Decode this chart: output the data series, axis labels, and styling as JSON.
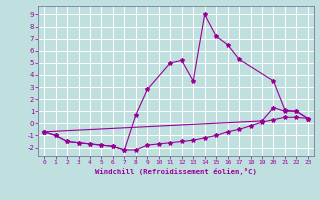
{
  "xlabel": "Windchill (Refroidissement éolien,°C)",
  "bg_color": "#c0e0e0",
  "line_color": "#990099",
  "xlim": [
    -0.5,
    23.5
  ],
  "ylim": [
    -2.7,
    9.7
  ],
  "xticks": [
    0,
    1,
    2,
    3,
    4,
    5,
    6,
    7,
    8,
    9,
    10,
    11,
    12,
    13,
    14,
    15,
    16,
    17,
    18,
    19,
    20,
    21,
    22,
    23
  ],
  "yticks": [
    -2,
    -1,
    0,
    1,
    2,
    3,
    4,
    5,
    6,
    7,
    8,
    9
  ],
  "series": [
    {
      "x": [
        0,
        1,
        2,
        3,
        4,
        5,
        6,
        7,
        8,
        9,
        10,
        11,
        12,
        13,
        14,
        15,
        16,
        17,
        18,
        19,
        20,
        21,
        22,
        23
      ],
      "y": [
        -0.7,
        -1.0,
        -1.5,
        -1.6,
        -1.7,
        -1.8,
        -1.9,
        -2.2,
        -2.2,
        -1.8,
        -1.7,
        -1.6,
        -1.5,
        -1.4,
        -1.2,
        -1.0,
        -0.7,
        -0.5,
        -0.2,
        0.1,
        0.3,
        0.5,
        0.5,
        0.4
      ]
    },
    {
      "x": [
        0,
        1,
        2,
        3,
        4,
        5,
        6,
        7,
        8,
        9,
        11,
        12,
        13,
        14,
        15,
        16,
        17,
        20,
        21,
        22,
        23
      ],
      "y": [
        -0.7,
        -1.0,
        -1.5,
        -1.6,
        -1.7,
        -1.8,
        -1.9,
        -2.2,
        0.7,
        2.8,
        5.0,
        5.2,
        3.5,
        9.0,
        7.2,
        6.5,
        5.3,
        3.5,
        1.1,
        1.0,
        0.4
      ]
    },
    {
      "x": [
        0,
        19,
        20,
        21,
        22,
        23
      ],
      "y": [
        -0.7,
        0.2,
        1.3,
        1.0,
        1.0,
        0.4
      ]
    }
  ]
}
